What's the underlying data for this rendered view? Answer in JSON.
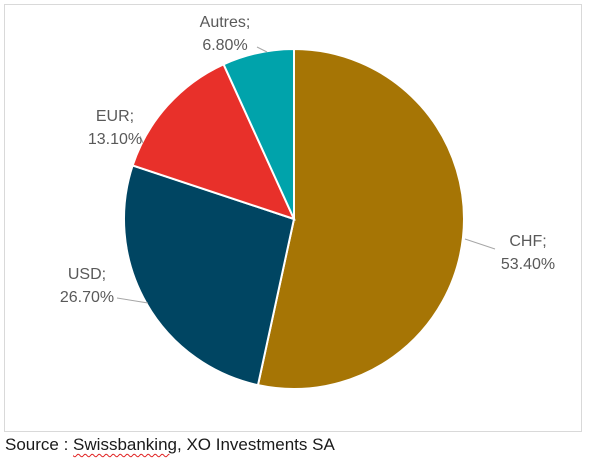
{
  "chart_data": {
    "type": "pie",
    "title": "",
    "categories": [
      "CHF",
      "USD",
      "EUR",
      "Autres"
    ],
    "values": [
      53.4,
      26.7,
      13.1,
      6.8
    ],
    "labels": [
      {
        "name": "CHF;",
        "value": "53.40%"
      },
      {
        "name": "USD;",
        "value": "26.70%"
      },
      {
        "name": "EUR;",
        "value": "13.10%"
      },
      {
        "name": "Autres;",
        "value": "6.80%"
      }
    ],
    "colors": [
      "#a67505",
      "#004562",
      "#e8302a",
      "#00a3ab"
    ],
    "start": "12 o'clock, clockwise",
    "legend": "none"
  },
  "source": {
    "prefix": "Source : ",
    "swiss": "Swissbanking",
    "suffix": ", XO Investments SA"
  }
}
